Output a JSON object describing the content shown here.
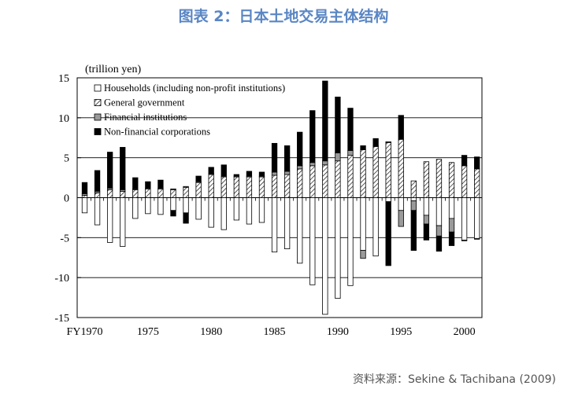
{
  "page": {
    "title": "图表 2：日本土地交易主体结构",
    "source": "资料来源：Sekine & Tachibana (2009)"
  },
  "chart_data": {
    "type": "bar",
    "stacked": true,
    "unit_label": "(trillion yen)",
    "ylim": [
      -15,
      15
    ],
    "yticks": [
      15,
      10,
      5,
      0,
      -5,
      -10,
      -15
    ],
    "gridlines": [
      10,
      5,
      -5,
      -10
    ],
    "x": [
      1970,
      1971,
      1972,
      1973,
      1974,
      1975,
      1976,
      1977,
      1978,
      1979,
      1980,
      1981,
      1982,
      1983,
      1984,
      1985,
      1986,
      1987,
      1988,
      1989,
      1990,
      1991,
      1992,
      1993,
      1994,
      1995,
      1996,
      1997,
      1998,
      1999,
      2000,
      2001
    ],
    "xtick_labels": [
      {
        "year": 1970,
        "label": "FY1970"
      },
      {
        "year": 1975,
        "label": "1975"
      },
      {
        "year": 1980,
        "label": "1980"
      },
      {
        "year": 1985,
        "label": "1985"
      },
      {
        "year": 1990,
        "label": "1990"
      },
      {
        "year": 1995,
        "label": "1995"
      },
      {
        "year": 2000,
        "label": "2000"
      }
    ],
    "legend_position": "top-left",
    "series": [
      {
        "name": "Households (including non-profit institutions)",
        "style": "white",
        "values": [
          -1.9,
          -3.4,
          -5.6,
          -6.1,
          -2.6,
          -2.0,
          -2.1,
          -1.6,
          -1.9,
          -2.7,
          -3.7,
          -4.0,
          -2.8,
          -3.3,
          -3.1,
          -6.8,
          -6.4,
          -8.2,
          -10.9,
          -14.6,
          -12.6,
          -11.0,
          -6.6,
          -7.3,
          -0.5,
          -1.6,
          -0.4,
          -2.2,
          -3.5,
          -2.6,
          -5.3,
          -5.1
        ]
      },
      {
        "name": "General government",
        "style": "hatched",
        "values": [
          0.3,
          0.6,
          1.0,
          0.8,
          1.0,
          1.1,
          1.1,
          1.0,
          1.3,
          1.9,
          2.9,
          2.6,
          2.6,
          2.6,
          2.6,
          2.8,
          2.9,
          3.6,
          4.0,
          4.1,
          4.6,
          5.3,
          6.0,
          6.4,
          6.9,
          7.3,
          2.1,
          4.5,
          4.8,
          4.4,
          4.0,
          3.6
        ]
      },
      {
        "name": "Financial institutions",
        "style": "gray",
        "values": [
          0.2,
          0.2,
          0.2,
          0.2,
          0.1,
          0.1,
          0.1,
          0.1,
          0.1,
          0.1,
          0.1,
          0.1,
          0.1,
          0.1,
          0.1,
          0.4,
          0.4,
          0.4,
          0.4,
          0.5,
          1.0,
          0.6,
          -1.0,
          0.1,
          0.1,
          -2.0,
          -1.2,
          -1.1,
          -1.3,
          -1.7,
          -0.1,
          -0.1
        ]
      },
      {
        "name": "Non-financial corporations",
        "style": "black",
        "values": [
          1.4,
          2.6,
          4.5,
          5.3,
          1.4,
          0.8,
          1.0,
          -0.7,
          -1.3,
          0.7,
          0.8,
          1.4,
          0.2,
          0.6,
          0.5,
          3.6,
          3.2,
          4.2,
          6.5,
          10.0,
          7.0,
          5.3,
          0.5,
          0.9,
          -8.0,
          3.0,
          -5.0,
          -2.0,
          -1.9,
          -1.7,
          1.3,
          1.5
        ]
      }
    ]
  }
}
